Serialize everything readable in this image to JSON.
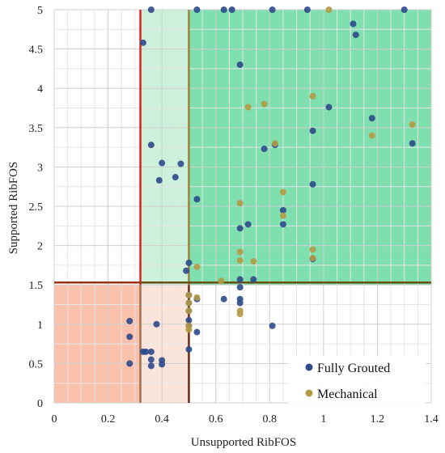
{
  "chart_data": {
    "type": "scatter",
    "xlabel": "Unsupported RibFOS",
    "ylabel": "Supported RibFOS",
    "xlim": [
      0,
      1.4
    ],
    "ylim": [
      0,
      5
    ],
    "x_ticks": [
      "0",
      "0.2",
      "0.4",
      "0.6",
      "0.8",
      "1",
      "1.2",
      "1.4"
    ],
    "y_ticks": [
      "0",
      "0.5",
      "1",
      "1.5",
      "2",
      "2.5",
      "3",
      "3.5",
      "4",
      "4.5",
      "5"
    ],
    "grid": true,
    "legend_position": "bottom-right",
    "regions": [
      {
        "name": "stable-zone",
        "x": [
          0.5,
          1.4
        ],
        "y": [
          1.5,
          5
        ],
        "color": "#00c060"
      },
      {
        "name": "transition-zone",
        "x": [
          0.32,
          0.5
        ],
        "y": [
          1.5,
          5
        ],
        "color": "#8fe0b0"
      },
      {
        "name": "unstable-zone",
        "x": [
          0,
          0.32
        ],
        "y": [
          0,
          1.5
        ],
        "color": "#f7a080"
      },
      {
        "name": "marginal-zone",
        "x": [
          0.32,
          0.5
        ],
        "y": [
          0,
          1.5
        ],
        "color": "#f8d0bc"
      }
    ],
    "threshold_lines": [
      {
        "axis": "x",
        "value": 0.32,
        "y": [
          1.5,
          5
        ],
        "color": "#e02020"
      },
      {
        "axis": "x",
        "value": 0.5,
        "y": [
          1.5,
          5
        ],
        "color": "#a08040"
      },
      {
        "axis": "x",
        "value": 0.32,
        "y": [
          0,
          1.5
        ],
        "color": "#a07050"
      },
      {
        "axis": "x",
        "value": 0.5,
        "y": [
          0,
          1.5
        ],
        "color": "#6a2a10"
      },
      {
        "axis": "y",
        "value": 1.53,
        "x": [
          0,
          0.32
        ],
        "color": "#a03010"
      },
      {
        "axis": "y",
        "value": 1.53,
        "x": [
          0.32,
          1.4
        ],
        "color": "#6a5010"
      }
    ],
    "series": [
      {
        "name": "Fully Grouted",
        "color": "#2e4a8a",
        "points": [
          [
            0.36,
            5.0
          ],
          [
            0.53,
            5.0
          ],
          [
            0.63,
            5.0
          ],
          [
            0.66,
            5.0
          ],
          [
            0.81,
            5.0
          ],
          [
            0.94,
            5.0
          ],
          [
            1.3,
            5.0
          ],
          [
            0.33,
            4.58
          ],
          [
            1.11,
            4.82
          ],
          [
            1.12,
            4.68
          ],
          [
            0.69,
            4.3
          ],
          [
            1.02,
            3.76
          ],
          [
            1.18,
            3.62
          ],
          [
            0.96,
            3.46
          ],
          [
            0.82,
            3.28
          ],
          [
            0.78,
            3.23
          ],
          [
            1.33,
            3.3
          ],
          [
            0.36,
            3.28
          ],
          [
            0.4,
            3.05
          ],
          [
            0.47,
            3.04
          ],
          [
            0.45,
            2.87
          ],
          [
            0.39,
            2.83
          ],
          [
            0.96,
            2.78
          ],
          [
            0.53,
            2.59
          ],
          [
            0.85,
            2.45
          ],
          [
            0.72,
            2.27
          ],
          [
            0.69,
            2.22
          ],
          [
            0.85,
            2.27
          ],
          [
            0.5,
            1.78
          ],
          [
            0.49,
            1.68
          ],
          [
            0.96,
            1.83
          ],
          [
            0.69,
            1.57
          ],
          [
            0.74,
            1.57
          ],
          [
            0.69,
            1.47
          ],
          [
            0.63,
            1.32
          ],
          [
            0.69,
            1.32
          ],
          [
            0.69,
            1.27
          ],
          [
            0.5,
            1.37
          ],
          [
            0.5,
            1.27
          ],
          [
            0.5,
            1.17
          ],
          [
            0.5,
            1.05
          ],
          [
            0.5,
            0.98
          ],
          [
            0.5,
            0.68
          ],
          [
            0.53,
            0.9
          ],
          [
            0.81,
            0.98
          ],
          [
            0.28,
            1.04
          ],
          [
            0.28,
            0.84
          ],
          [
            0.28,
            0.5
          ],
          [
            0.38,
            1.0
          ],
          [
            0.34,
            0.65
          ],
          [
            0.36,
            0.65
          ],
          [
            0.36,
            0.55
          ],
          [
            0.36,
            0.47
          ],
          [
            0.33,
            0.65
          ],
          [
            0.4,
            0.54
          ],
          [
            0.4,
            0.49
          ],
          [
            0.53,
            1.32
          ]
        ]
      },
      {
        "name": "Mechanical",
        "color": "#b39a45",
        "points": [
          [
            1.02,
            5.0
          ],
          [
            0.72,
            3.76
          ],
          [
            0.78,
            3.8
          ],
          [
            0.96,
            3.9
          ],
          [
            1.33,
            3.54
          ],
          [
            1.18,
            3.4
          ],
          [
            0.82,
            3.3
          ],
          [
            0.85,
            2.68
          ],
          [
            0.69,
            2.54
          ],
          [
            0.85,
            2.38
          ],
          [
            0.69,
            1.92
          ],
          [
            0.69,
            1.81
          ],
          [
            0.74,
            1.8
          ],
          [
            0.96,
            1.95
          ],
          [
            0.96,
            1.84
          ],
          [
            0.53,
            1.73
          ],
          [
            0.62,
            1.55
          ],
          [
            0.69,
            1.17
          ],
          [
            0.69,
            1.13
          ],
          [
            0.5,
            1.37
          ],
          [
            0.53,
            1.34
          ],
          [
            0.5,
            1.27
          ],
          [
            0.5,
            1.17
          ],
          [
            0.5,
            0.93
          ],
          [
            0.5,
            0.98
          ]
        ]
      }
    ]
  }
}
